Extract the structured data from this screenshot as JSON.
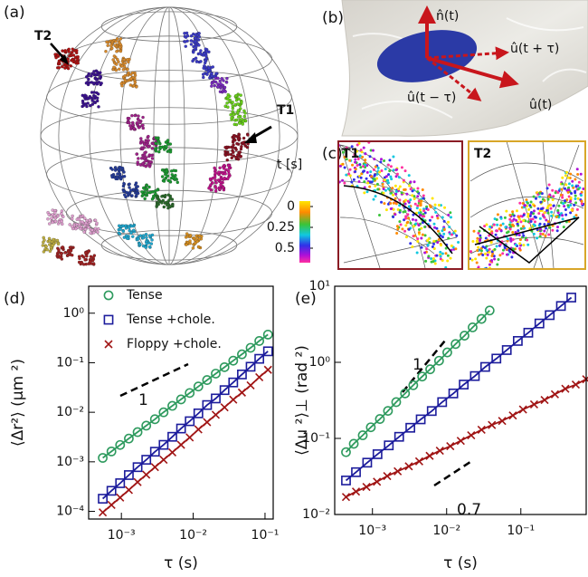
{
  "panels": {
    "a": {
      "label": "(a)",
      "tracks": [
        "T1",
        "T2"
      ]
    },
    "b": {
      "label": "(b)",
      "vectors": [
        "n̂(t)",
        "û(t + τ)",
        "û(t − τ)",
        "û(t)"
      ]
    },
    "c": {
      "label": "(c)",
      "insets": [
        "T1",
        "T2"
      ],
      "colorbar": {
        "label": "t [s]",
        "ticks": [
          0,
          0.25,
          0.5
        ]
      }
    }
  },
  "chart_data": [
    {
      "type": "scatter",
      "label": "(d)",
      "x_label": "τ (s)",
      "y_label": "⟨Δr²⟩ (μm ²)",
      "log_x": true,
      "log_y": true,
      "xlim": [
        0.00035,
        0.13
      ],
      "ylim": [
        7e-05,
        3.5
      ],
      "xticks": [
        {
          "value": 0.001,
          "label": "10⁻³"
        },
        {
          "value": 0.01,
          "label": "10⁻²"
        },
        {
          "value": 0.1,
          "label": "10⁻¹"
        }
      ],
      "yticks": [
        {
          "value": 0.0001,
          "label": "10⁻⁴"
        },
        {
          "value": 0.001,
          "label": "10⁻³"
        },
        {
          "value": 0.01,
          "label": "10⁻²"
        },
        {
          "value": 0.1,
          "label": "10⁻¹"
        },
        {
          "value": 1,
          "label": "10⁰"
        }
      ],
      "legend": "upper left",
      "annotations": [
        {
          "text": "1"
        }
      ],
      "series": [
        {
          "name": "Tense",
          "color": "#2e9a5e",
          "marker": "circle",
          "x": [
            0.00055,
            0.000727,
            0.00096,
            0.00127,
            0.00168,
            0.00222,
            0.00293,
            0.00387,
            0.00512,
            0.00677,
            0.00894,
            0.0118,
            0.0156,
            0.0206,
            0.0273,
            0.0361,
            0.0477,
            0.063,
            0.0832,
            0.11
          ],
          "values": [
            0.0012,
            0.00162,
            0.00219,
            0.00295,
            0.00398,
            0.00537,
            0.00724,
            0.01,
            0.0135,
            0.0182,
            0.0245,
            0.0331,
            0.0447,
            0.0603,
            0.0813,
            0.11,
            0.148,
            0.2,
            0.275,
            0.37
          ]
        },
        {
          "name": "Tense +chole.",
          "color": "#1c1c9c",
          "marker": "square",
          "x": [
            0.00055,
            0.000727,
            0.00096,
            0.00127,
            0.00168,
            0.00222,
            0.00293,
            0.00387,
            0.00512,
            0.00677,
            0.00894,
            0.0118,
            0.0156,
            0.0206,
            0.0273,
            0.0361,
            0.0477,
            0.063,
            0.0832,
            0.11
          ],
          "values": [
            0.00018,
            0.00026,
            0.00037,
            0.00054,
            0.00078,
            0.0011,
            0.0016,
            0.0022,
            0.0032,
            0.0047,
            0.0066,
            0.0095,
            0.014,
            0.019,
            0.028,
            0.04,
            0.058,
            0.083,
            0.12,
            0.17
          ]
        },
        {
          "name": "Floppy +chole.",
          "color": "#a01515",
          "marker": "cross",
          "x": [
            0.00055,
            0.000727,
            0.00096,
            0.00127,
            0.00168,
            0.00222,
            0.00293,
            0.00387,
            0.00512,
            0.00677,
            0.00894,
            0.0118,
            0.0156,
            0.0206,
            0.0273,
            0.0361,
            0.0477,
            0.063,
            0.0832,
            0.11
          ],
          "values": [
            9.5e-05,
            0.000135,
            0.00019,
            0.00027,
            0.00039,
            0.00055,
            0.00078,
            0.0011,
            0.00155,
            0.0022,
            0.0031,
            0.0045,
            0.0063,
            0.0089,
            0.0126,
            0.018,
            0.025,
            0.035,
            0.051,
            0.072
          ]
        }
      ]
    },
    {
      "type": "scatter",
      "label": "(e)",
      "x_label": "τ (s)",
      "y_label": "⟨Δu ²⟩⊥ (rad ²)",
      "log_x": true,
      "log_y": true,
      "xlim": [
        0.00031,
        0.76
      ],
      "ylim": [
        0.01,
        10
      ],
      "xticks": [
        {
          "value": 0.001,
          "label": "10⁻³"
        },
        {
          "value": 0.01,
          "label": "10⁻²"
        },
        {
          "value": 0.1,
          "label": "10⁻¹"
        }
      ],
      "yticks": [
        {
          "value": 0.01,
          "label": "10⁻²"
        },
        {
          "value": 0.1,
          "label": "10⁻¹"
        },
        {
          "value": 1,
          "label": "10⁰"
        },
        {
          "value": 10,
          "label": "10¹"
        }
      ],
      "annotations": [
        {
          "text": "1"
        },
        {
          "text": "0.7"
        }
      ],
      "series": [
        {
          "color": "#2e9a5e",
          "marker": "circle",
          "x": [
            0.00044,
            0.00056,
            0.00074,
            0.00095,
            0.00126,
            0.00162,
            0.00209,
            0.00275,
            0.00355,
            0.00468,
            0.006,
            0.0079,
            0.0102,
            0.0132,
            0.0174,
            0.0224,
            0.0295,
            0.038
          ],
          "values": [
            0.066,
            0.085,
            0.11,
            0.14,
            0.18,
            0.23,
            0.3,
            0.39,
            0.5,
            0.65,
            0.81,
            1.05,
            1.35,
            1.74,
            2.24,
            2.88,
            3.72,
            4.8
          ]
        },
        {
          "color": "#1c1c9c",
          "marker": "square",
          "x": [
            0.00044,
            0.0006,
            0.00085,
            0.00117,
            0.00166,
            0.00229,
            0.00324,
            0.00447,
            0.0063,
            0.0087,
            0.0123,
            0.017,
            0.024,
            0.0331,
            0.0468,
            0.0646,
            0.091,
            0.126,
            0.178,
            0.245,
            0.347,
            0.479
          ],
          "values": [
            0.028,
            0.036,
            0.048,
            0.062,
            0.081,
            0.105,
            0.138,
            0.178,
            0.229,
            0.3,
            0.39,
            0.51,
            0.66,
            0.87,
            1.12,
            1.45,
            1.91,
            2.45,
            3.24,
            4.17,
            5.5,
            7.1
          ]
        },
        {
          "color": "#a01515",
          "marker": "cross",
          "x": [
            0.00044,
            0.0006,
            0.00083,
            0.00115,
            0.00158,
            0.00219,
            0.00309,
            0.00427,
            0.0059,
            0.0081,
            0.0112,
            0.0155,
            0.0214,
            0.0295,
            0.0407,
            0.056,
            0.078,
            0.107,
            0.151,
            0.209,
            0.288,
            0.398,
            0.55,
            0.76
          ],
          "values": [
            0.017,
            0.02,
            0.023,
            0.027,
            0.032,
            0.037,
            0.043,
            0.05,
            0.059,
            0.069,
            0.079,
            0.093,
            0.11,
            0.13,
            0.15,
            0.17,
            0.2,
            0.24,
            0.28,
            0.32,
            0.38,
            0.45,
            0.51,
            0.6
          ]
        }
      ]
    }
  ]
}
